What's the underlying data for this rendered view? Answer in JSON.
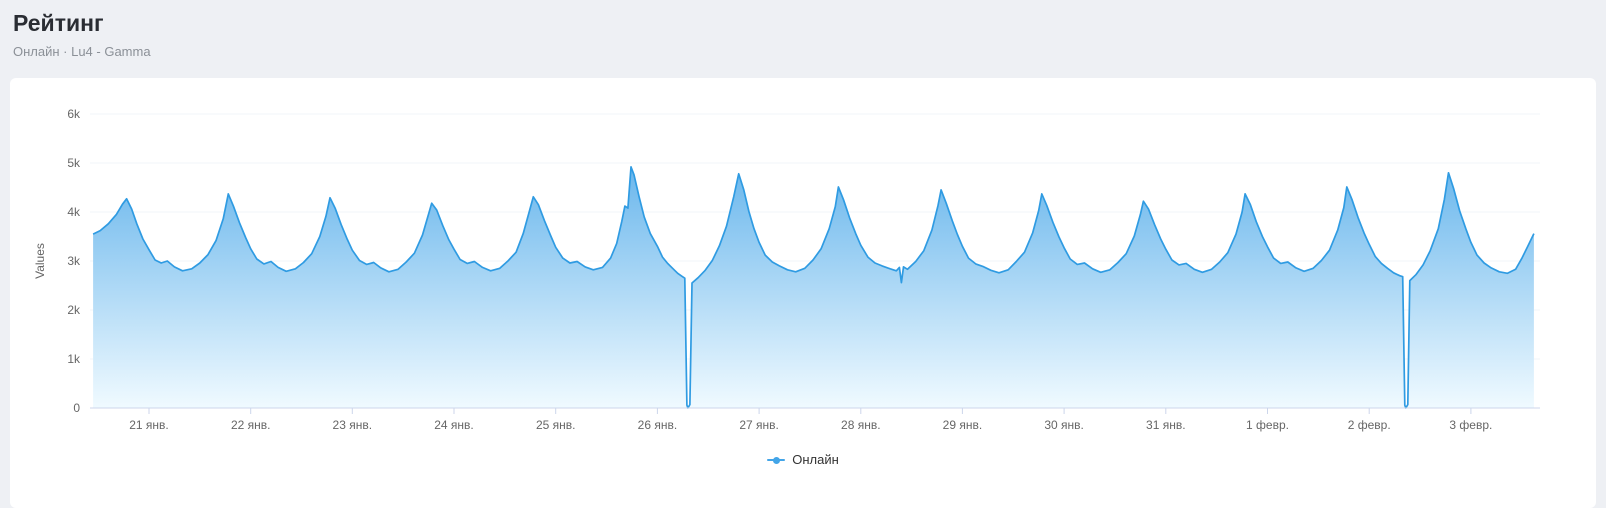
{
  "header": {
    "title": "Рейтинг",
    "subtitle": "Онлайн · Lu4 - Gamma"
  },
  "legend": {
    "items": [
      {
        "label": "Онлайн",
        "color": "#43a5e8"
      }
    ]
  },
  "chart_data": {
    "type": "area",
    "title": "Рейтинг",
    "subtitle": "Онлайн · Lu4 - Gamma",
    "xlabel": "",
    "ylabel": "Values",
    "xlim": [
      20.42,
      34.68
    ],
    "ylim": [
      0,
      6000
    ],
    "grid": "very-faint-horizontal",
    "legend_position": "bottom-center",
    "x_axis_note": "x in days: 21 = 21 Jan ... 31 = 31 Jan, 32 = 1 Feb, 33 = 2 Feb, 34 = 3 Feb",
    "yticks": [
      {
        "value": 0,
        "label": "0"
      },
      {
        "value": 1000,
        "label": "1k"
      },
      {
        "value": 2000,
        "label": "2k"
      },
      {
        "value": 3000,
        "label": "3k"
      },
      {
        "value": 4000,
        "label": "4k"
      },
      {
        "value": 5000,
        "label": "5k"
      },
      {
        "value": 6000,
        "label": "6k"
      }
    ],
    "xticks": [
      {
        "value": 21,
        "label": "21 янв."
      },
      {
        "value": 22,
        "label": "22 янв."
      },
      {
        "value": 23,
        "label": "23 янв."
      },
      {
        "value": 24,
        "label": "24 янв."
      },
      {
        "value": 25,
        "label": "25 янв."
      },
      {
        "value": 26,
        "label": "26 янв."
      },
      {
        "value": 27,
        "label": "27 янв."
      },
      {
        "value": 28,
        "label": "28 янв."
      },
      {
        "value": 29,
        "label": "29 янв."
      },
      {
        "value": 30,
        "label": "30 янв."
      },
      {
        "value": 31,
        "label": "31 янв."
      },
      {
        "value": 32,
        "label": "1 февр."
      },
      {
        "value": 33,
        "label": "2 февр."
      },
      {
        "value": 34,
        "label": "3 февр."
      }
    ],
    "series": [
      {
        "name": "Онлайн",
        "color": "#2f9be2",
        "fill_top": "#4da8e8",
        "fill_bottom": "#f0faff",
        "points": [
          [
            20.45,
            3550
          ],
          [
            20.52,
            3620
          ],
          [
            20.6,
            3760
          ],
          [
            20.68,
            3950
          ],
          [
            20.74,
            4160
          ],
          [
            20.78,
            4270
          ],
          [
            20.83,
            4060
          ],
          [
            20.88,
            3760
          ],
          [
            20.94,
            3450
          ],
          [
            21.0,
            3230
          ],
          [
            21.06,
            3020
          ],
          [
            21.12,
            2960
          ],
          [
            21.18,
            3000
          ],
          [
            21.25,
            2880
          ],
          [
            21.33,
            2800
          ],
          [
            21.42,
            2840
          ],
          [
            21.5,
            2960
          ],
          [
            21.58,
            3130
          ],
          [
            21.66,
            3420
          ],
          [
            21.73,
            3860
          ],
          [
            21.78,
            4370
          ],
          [
            21.83,
            4120
          ],
          [
            21.89,
            3780
          ],
          [
            21.95,
            3480
          ],
          [
            22.0,
            3250
          ],
          [
            22.06,
            3040
          ],
          [
            22.13,
            2940
          ],
          [
            22.2,
            2990
          ],
          [
            22.27,
            2870
          ],
          [
            22.35,
            2790
          ],
          [
            22.44,
            2840
          ],
          [
            22.52,
            2970
          ],
          [
            22.6,
            3150
          ],
          [
            22.68,
            3500
          ],
          [
            22.74,
            3910
          ],
          [
            22.78,
            4290
          ],
          [
            22.83,
            4080
          ],
          [
            22.89,
            3740
          ],
          [
            22.95,
            3440
          ],
          [
            23.0,
            3220
          ],
          [
            23.07,
            3010
          ],
          [
            23.14,
            2930
          ],
          [
            23.21,
            2970
          ],
          [
            23.28,
            2860
          ],
          [
            23.36,
            2780
          ],
          [
            23.45,
            2830
          ],
          [
            23.53,
            2980
          ],
          [
            23.61,
            3160
          ],
          [
            23.69,
            3530
          ],
          [
            23.75,
            3960
          ],
          [
            23.78,
            4180
          ],
          [
            23.83,
            4040
          ],
          [
            23.89,
            3720
          ],
          [
            23.95,
            3430
          ],
          [
            24.0,
            3240
          ],
          [
            24.06,
            3030
          ],
          [
            24.13,
            2950
          ],
          [
            24.2,
            2990
          ],
          [
            24.28,
            2870
          ],
          [
            24.36,
            2800
          ],
          [
            24.45,
            2850
          ],
          [
            24.53,
            3000
          ],
          [
            24.61,
            3180
          ],
          [
            24.68,
            3560
          ],
          [
            24.74,
            4010
          ],
          [
            24.78,
            4310
          ],
          [
            24.83,
            4150
          ],
          [
            24.89,
            3820
          ],
          [
            24.95,
            3520
          ],
          [
            25.0,
            3280
          ],
          [
            25.07,
            3060
          ],
          [
            25.14,
            2960
          ],
          [
            25.21,
            2990
          ],
          [
            25.29,
            2880
          ],
          [
            25.37,
            2820
          ],
          [
            25.46,
            2870
          ],
          [
            25.54,
            3060
          ],
          [
            25.6,
            3360
          ],
          [
            25.65,
            3810
          ],
          [
            25.68,
            4120
          ],
          [
            25.71,
            4080
          ],
          [
            25.74,
            4920
          ],
          [
            25.77,
            4760
          ],
          [
            25.82,
            4310
          ],
          [
            25.87,
            3900
          ],
          [
            25.93,
            3560
          ],
          [
            26.0,
            3300
          ],
          [
            26.05,
            3080
          ],
          [
            26.1,
            2950
          ],
          [
            26.15,
            2850
          ],
          [
            26.2,
            2750
          ],
          [
            26.24,
            2690
          ],
          [
            26.27,
            2650
          ],
          [
            26.29,
            60
          ],
          [
            26.3,
            0
          ],
          [
            26.32,
            70
          ],
          [
            26.34,
            2550
          ],
          [
            26.4,
            2660
          ],
          [
            26.47,
            2810
          ],
          [
            26.54,
            3010
          ],
          [
            26.61,
            3310
          ],
          [
            26.68,
            3710
          ],
          [
            26.75,
            4310
          ],
          [
            26.8,
            4780
          ],
          [
            26.85,
            4450
          ],
          [
            26.9,
            4010
          ],
          [
            26.95,
            3660
          ],
          [
            27.0,
            3380
          ],
          [
            27.06,
            3120
          ],
          [
            27.13,
            2980
          ],
          [
            27.2,
            2900
          ],
          [
            27.28,
            2820
          ],
          [
            27.36,
            2780
          ],
          [
            27.45,
            2850
          ],
          [
            27.53,
            3020
          ],
          [
            27.61,
            3250
          ],
          [
            27.69,
            3660
          ],
          [
            27.75,
            4110
          ],
          [
            27.78,
            4510
          ],
          [
            27.83,
            4250
          ],
          [
            27.89,
            3880
          ],
          [
            27.95,
            3560
          ],
          [
            28.0,
            3320
          ],
          [
            28.07,
            3080
          ],
          [
            28.14,
            2960
          ],
          [
            28.21,
            2900
          ],
          [
            28.29,
            2840
          ],
          [
            28.35,
            2800
          ],
          [
            28.38,
            2870
          ],
          [
            28.4,
            2560
          ],
          [
            28.42,
            2880
          ],
          [
            28.46,
            2830
          ],
          [
            28.54,
            2990
          ],
          [
            28.62,
            3210
          ],
          [
            28.7,
            3630
          ],
          [
            28.76,
            4130
          ],
          [
            28.79,
            4450
          ],
          [
            28.84,
            4180
          ],
          [
            28.9,
            3820
          ],
          [
            28.95,
            3540
          ],
          [
            29.0,
            3300
          ],
          [
            29.06,
            3060
          ],
          [
            29.13,
            2940
          ],
          [
            29.2,
            2890
          ],
          [
            29.28,
            2810
          ],
          [
            29.36,
            2760
          ],
          [
            29.45,
            2820
          ],
          [
            29.53,
            2990
          ],
          [
            29.61,
            3180
          ],
          [
            29.69,
            3570
          ],
          [
            29.75,
            4030
          ],
          [
            29.78,
            4370
          ],
          [
            29.83,
            4130
          ],
          [
            29.89,
            3790
          ],
          [
            29.95,
            3490
          ],
          [
            30.0,
            3270
          ],
          [
            30.06,
            3040
          ],
          [
            30.13,
            2930
          ],
          [
            30.2,
            2960
          ],
          [
            30.28,
            2840
          ],
          [
            30.36,
            2770
          ],
          [
            30.45,
            2820
          ],
          [
            30.53,
            2970
          ],
          [
            30.61,
            3150
          ],
          [
            30.69,
            3510
          ],
          [
            30.75,
            3950
          ],
          [
            30.78,
            4220
          ],
          [
            30.83,
            4060
          ],
          [
            30.89,
            3740
          ],
          [
            30.95,
            3450
          ],
          [
            31.0,
            3240
          ],
          [
            31.06,
            3020
          ],
          [
            31.13,
            2920
          ],
          [
            31.2,
            2950
          ],
          [
            31.28,
            2830
          ],
          [
            31.36,
            2770
          ],
          [
            31.45,
            2830
          ],
          [
            31.53,
            2980
          ],
          [
            31.61,
            3170
          ],
          [
            31.69,
            3550
          ],
          [
            31.75,
            4000
          ],
          [
            31.78,
            4370
          ],
          [
            31.83,
            4160
          ],
          [
            31.89,
            3800
          ],
          [
            31.95,
            3500
          ],
          [
            32.0,
            3290
          ],
          [
            32.06,
            3060
          ],
          [
            32.13,
            2950
          ],
          [
            32.2,
            2980
          ],
          [
            32.28,
            2860
          ],
          [
            32.36,
            2790
          ],
          [
            32.45,
            2850
          ],
          [
            32.53,
            3010
          ],
          [
            32.61,
            3220
          ],
          [
            32.69,
            3630
          ],
          [
            32.75,
            4090
          ],
          [
            32.78,
            4510
          ],
          [
            32.83,
            4260
          ],
          [
            32.89,
            3890
          ],
          [
            32.95,
            3570
          ],
          [
            33.0,
            3340
          ],
          [
            33.06,
            3090
          ],
          [
            33.12,
            2950
          ],
          [
            33.18,
            2850
          ],
          [
            33.24,
            2760
          ],
          [
            33.3,
            2700
          ],
          [
            33.33,
            2680
          ],
          [
            33.35,
            60
          ],
          [
            33.36,
            0
          ],
          [
            33.38,
            70
          ],
          [
            33.4,
            2600
          ],
          [
            33.46,
            2720
          ],
          [
            33.53,
            2920
          ],
          [
            33.6,
            3210
          ],
          [
            33.68,
            3660
          ],
          [
            33.74,
            4260
          ],
          [
            33.78,
            4800
          ],
          [
            33.83,
            4480
          ],
          [
            33.89,
            4020
          ],
          [
            33.95,
            3660
          ],
          [
            34.0,
            3380
          ],
          [
            34.06,
            3120
          ],
          [
            34.13,
            2960
          ],
          [
            34.2,
            2860
          ],
          [
            34.28,
            2780
          ],
          [
            34.36,
            2750
          ],
          [
            34.44,
            2830
          ],
          [
            34.5,
            3050
          ],
          [
            34.56,
            3300
          ],
          [
            34.62,
            3560
          ]
        ]
      }
    ]
  }
}
